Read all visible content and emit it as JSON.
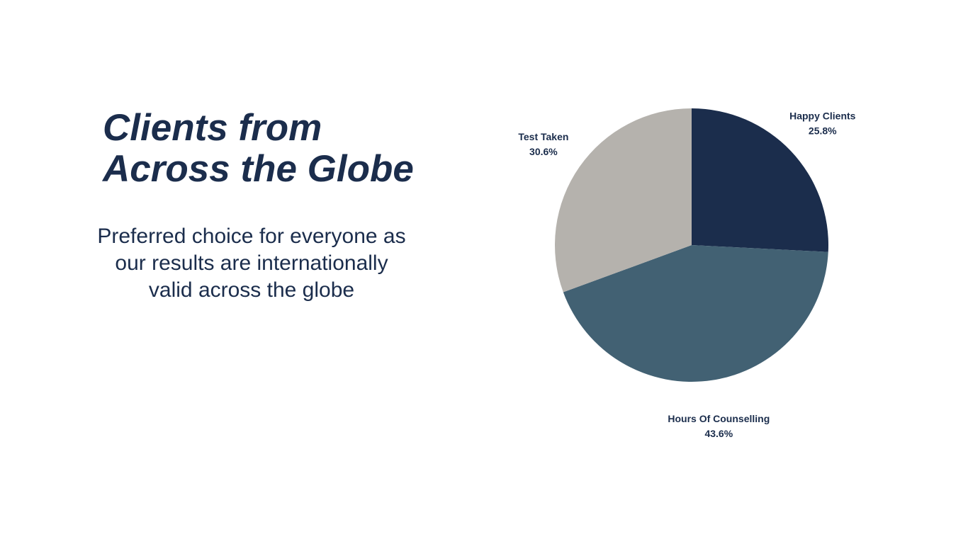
{
  "heading": {
    "line1": "Clients from",
    "line2": "Across the Globe"
  },
  "description": "Preferred choice for everyone as our results are internationally valid across the globe",
  "chart_data": {
    "type": "pie",
    "slices": [
      {
        "label": "Happy Clients",
        "value": 25.8,
        "value_label": "25.8%",
        "color": "#1b2d4c"
      },
      {
        "label": "Hours Of Counselling",
        "value": 43.6,
        "value_label": "43.6%",
        "color": "#426173"
      },
      {
        "label": "Test Taken",
        "value": 30.6,
        "value_label": "30.6%",
        "color": "#b5b2ad"
      }
    ],
    "start_angle": "12 o'clock",
    "direction": "clockwise",
    "labels": "outside"
  }
}
